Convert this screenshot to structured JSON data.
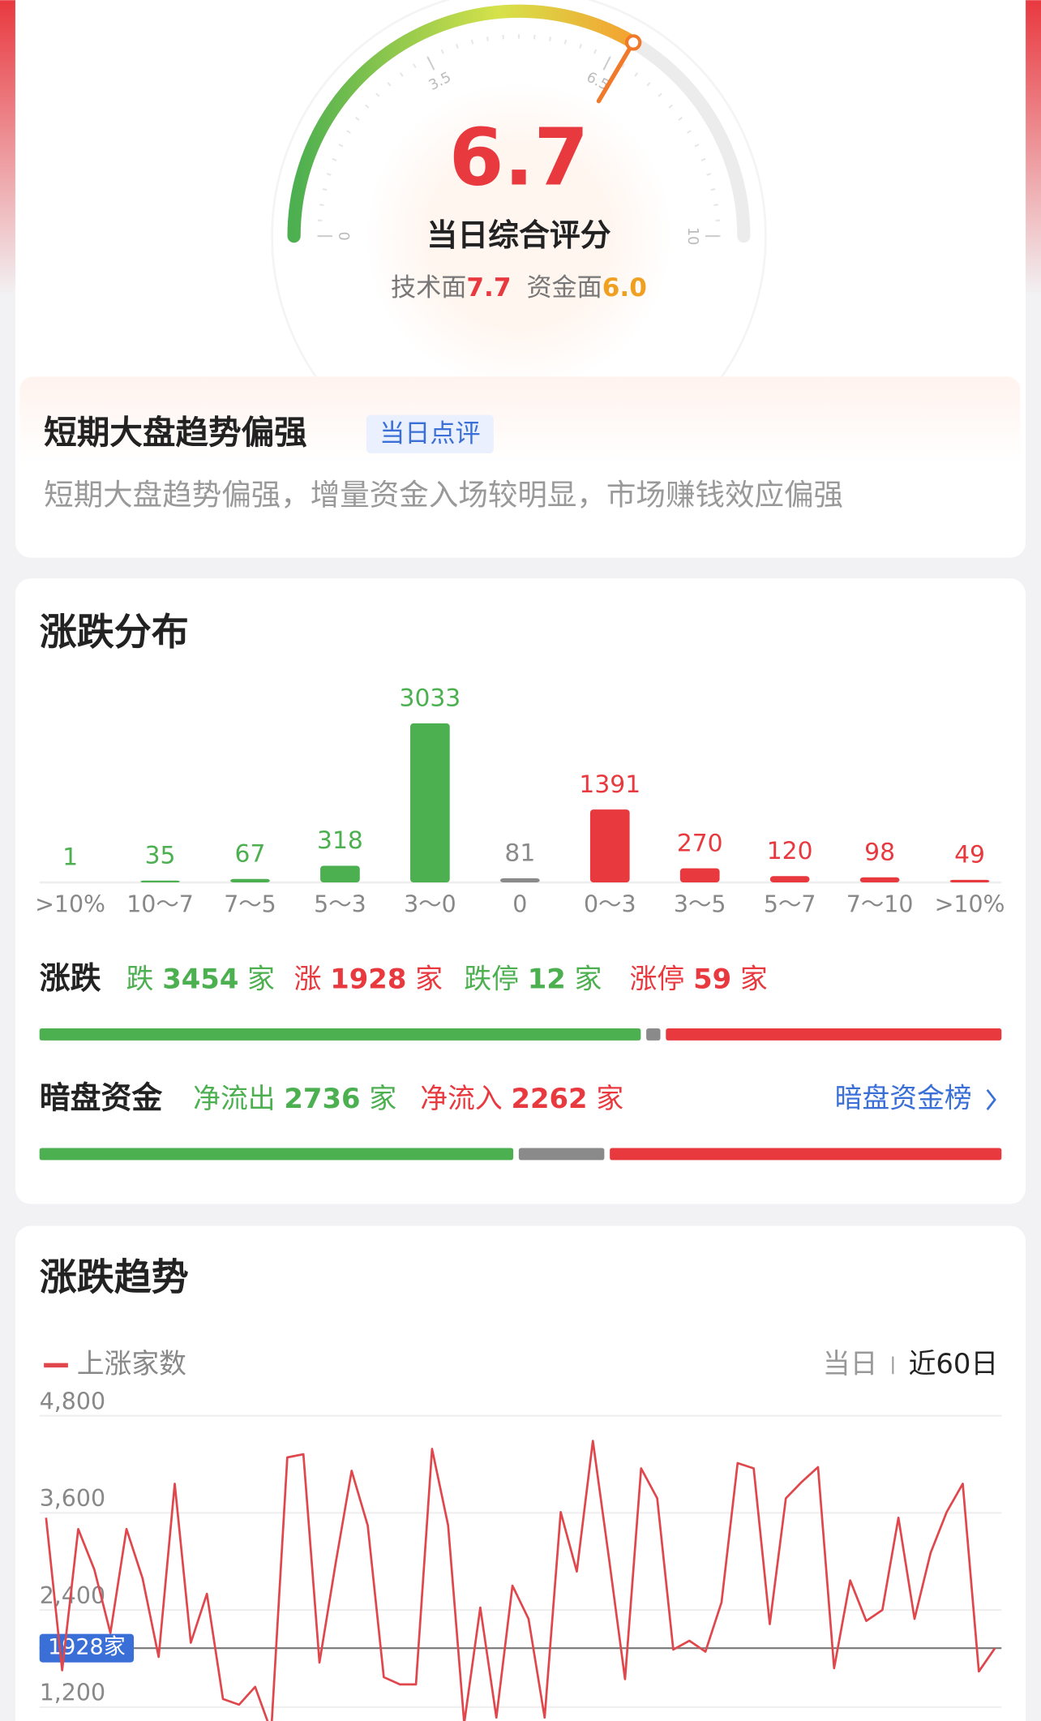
{
  "gauge": {
    "score": 6.7,
    "title": "当日综合评分",
    "range": [
      0,
      10
    ],
    "ticks": [
      0,
      3.5,
      6.5,
      10
    ],
    "sub_scores": [
      {
        "label": "技术面",
        "value": 7.7,
        "color": "#e8393f"
      },
      {
        "label": "资金面",
        "value": 6,
        "value_label": "6.0",
        "color": "#f0a020"
      }
    ]
  },
  "review": {
    "title": "短期大盘趋势偏强",
    "tag": "当日点评",
    "text": "短期大盘趋势偏强，增量资金入场较明显，市场赚钱效应偏强"
  },
  "chart_data": [
    {
      "type": "bar",
      "title": "涨跌分布",
      "categories": [
        ">10%",
        "10～7",
        "7～5",
        "5～3",
        "3～0",
        "0",
        "0～3",
        "3～5",
        "5～7",
        "7～10",
        ">10%"
      ],
      "values": [
        1,
        35,
        67,
        318,
        3033,
        81,
        1391,
        270,
        120,
        98,
        49
      ],
      "colors": [
        "#4caf50",
        "#4caf50",
        "#4caf50",
        "#4caf50",
        "#4caf50",
        "#8a8a8a",
        "#e8393f",
        "#e8393f",
        "#e8393f",
        "#e8393f",
        "#e8393f"
      ]
    },
    {
      "type": "line",
      "title": "涨跌趋势",
      "series": [
        {
          "name": "上涨家数",
          "color": "#e0474c",
          "values": [
            3540,
            1655,
            3400,
            2900,
            2115,
            3400,
            2790,
            1820,
            3960,
            1995,
            2600,
            1300,
            1230,
            1450,
            900,
            4285,
            4325,
            1750,
            2970,
            4120,
            3445,
            1570,
            1480,
            1480,
            4390,
            3445,
            1000,
            2430,
            1070,
            2700,
            2290,
            1070,
            3610,
            2875,
            4490,
            3040,
            1545,
            4150,
            3780,
            1910,
            2020,
            1885,
            2495,
            4215,
            4150,
            2225,
            3780,
            3985,
            4165,
            1680,
            2765,
            2265,
            2400,
            3540,
            2290,
            3105,
            3610,
            3960,
            1640,
            1928
          ]
        }
      ],
      "ylim": [
        0,
        4800
      ],
      "yticks": [
        {
          "value": 1200,
          "label": "1,200"
        },
        {
          "value": 2400,
          "label": "2,400"
        },
        {
          "value": 3600,
          "label": "3,600"
        },
        {
          "value": 4800,
          "label": "4,800"
        }
      ],
      "grid": true,
      "reference": {
        "value": 1928,
        "label": "1928家"
      },
      "range_options": [
        "当日",
        "近60日"
      ],
      "active_range": 1
    }
  ],
  "breadth": {
    "label": "涨跌",
    "unit": "家",
    "items": [
      {
        "label": "跌",
        "value": 3454,
        "color": "#4caf50"
      },
      {
        "label": "涨",
        "value": 1928,
        "color": "#e8393f"
      },
      {
        "label": "跌停",
        "value": 12,
        "color": "#4caf50"
      },
      {
        "label": "涨停",
        "value": 59,
        "color": "#e8393f"
      }
    ]
  },
  "dark_pool": {
    "label": "暗盘资金",
    "unit": "家",
    "items": [
      {
        "label": "净流出",
        "value": 2736,
        "color": "#4caf50"
      },
      {
        "label": "净流入",
        "value": 2262,
        "color": "#e8393f"
      }
    ],
    "link": "暗盘资金榜"
  }
}
